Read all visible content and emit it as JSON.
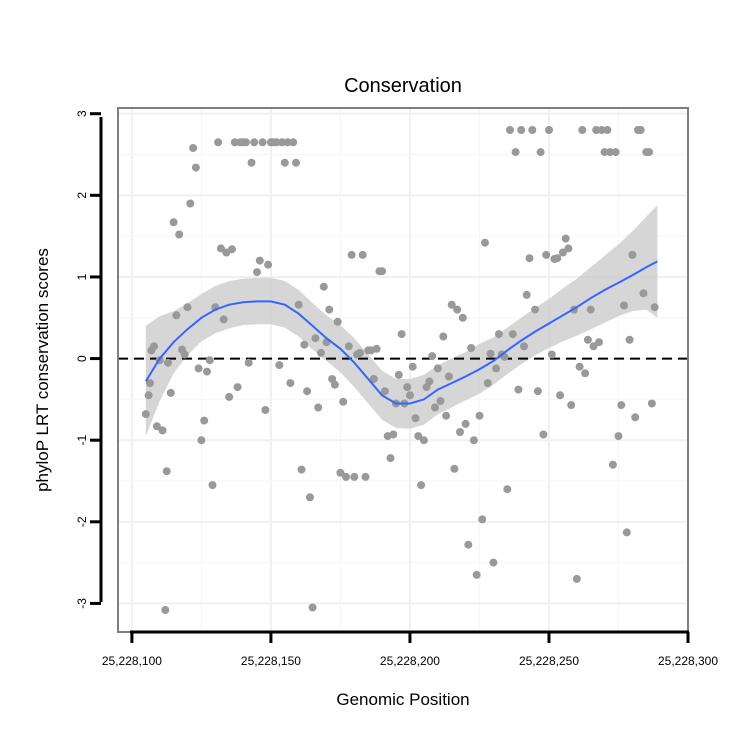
{
  "chart_data": {
    "type": "scatter",
    "title": "Conservation",
    "xlabel": "Genomic Position",
    "ylabel": "phyloP LRT conservation scores",
    "xlim": [
      25228095,
      25228300
    ],
    "ylim": [
      -3.35,
      3.07
    ],
    "x_ticks": [
      25228100,
      25228150,
      25228200,
      25228250,
      25228300
    ],
    "x_tick_labels": [
      "25,228,100",
      "25,228,150",
      "25,228,200",
      "25,228,250",
      "25,228,300"
    ],
    "y_ticks": [
      -3,
      -2,
      -1,
      0,
      1,
      2,
      3
    ],
    "y_tick_labels": [
      "-3",
      "-2",
      "-1",
      "0",
      "1",
      "2",
      "3"
    ],
    "reference_line": {
      "y": 0,
      "style": "dashed"
    },
    "grid": true,
    "colors": {
      "points": "#999999",
      "smooth": "#3366ff",
      "ribbon": "#cccccc",
      "reference": "#000000",
      "frame": "#7f7f7f"
    },
    "series": [
      {
        "name": "scores",
        "type": "scatter",
        "points": [
          [
            25228105,
            -0.68
          ],
          [
            25228106,
            -0.45
          ],
          [
            25228106.5,
            -0.3
          ],
          [
            25228107,
            0.1
          ],
          [
            25228108,
            0.15
          ],
          [
            25228109,
            -0.83
          ],
          [
            25228110,
            -0.02
          ],
          [
            25228111,
            -0.88
          ],
          [
            25228112,
            -3.08
          ],
          [
            25228112.5,
            -1.38
          ],
          [
            25228113,
            -0.05
          ],
          [
            25228114,
            -0.42
          ],
          [
            25228115,
            1.67
          ],
          [
            25228116,
            0.53
          ],
          [
            25228117,
            1.52
          ],
          [
            25228118,
            0.11
          ],
          [
            25228119,
            0.05
          ],
          [
            25228120,
            0.63
          ],
          [
            25228121,
            1.9
          ],
          [
            25228122,
            2.58
          ],
          [
            25228123,
            2.34
          ],
          [
            25228124,
            -0.12
          ],
          [
            25228125,
            -1.0
          ],
          [
            25228126,
            -0.76
          ],
          [
            25228127,
            -0.16
          ],
          [
            25228128,
            -0.02
          ],
          [
            25228129,
            -1.55
          ],
          [
            25228130,
            0.63
          ],
          [
            25228131,
            2.65
          ],
          [
            25228132,
            1.35
          ],
          [
            25228133,
            0.48
          ],
          [
            25228134,
            1.3
          ],
          [
            25228135,
            -0.47
          ],
          [
            25228136,
            1.34
          ],
          [
            25228137,
            2.65
          ],
          [
            25228138,
            -0.35
          ],
          [
            25228139,
            2.65
          ],
          [
            25228140,
            2.65
          ],
          [
            25228141,
            2.65
          ],
          [
            25228142,
            -0.05
          ],
          [
            25228143,
            2.4
          ],
          [
            25228144,
            2.65
          ],
          [
            25228145,
            1.06
          ],
          [
            25228146,
            1.2
          ],
          [
            25228147,
            2.65
          ],
          [
            25228148,
            -0.63
          ],
          [
            25228149,
            1.15
          ],
          [
            25228150,
            2.65
          ],
          [
            25228151,
            2.65
          ],
          [
            25228152,
            2.65
          ],
          [
            25228153,
            -0.08
          ],
          [
            25228154,
            2.65
          ],
          [
            25228155,
            2.4
          ],
          [
            25228156,
            2.65
          ],
          [
            25228157,
            -0.3
          ],
          [
            25228158,
            2.65
          ],
          [
            25228159,
            2.4
          ],
          [
            25228160,
            0.66
          ],
          [
            25228161,
            -1.36
          ],
          [
            25228162,
            0.17
          ],
          [
            25228163,
            -0.4
          ],
          [
            25228164,
            -1.7
          ],
          [
            25228165,
            -3.05
          ],
          [
            25228166,
            0.25
          ],
          [
            25228167,
            -0.6
          ],
          [
            25228168,
            0.07
          ],
          [
            25228169,
            0.88
          ],
          [
            25228170,
            0.2
          ],
          [
            25228171,
            0.6
          ],
          [
            25228172,
            -0.25
          ],
          [
            25228173,
            -0.32
          ],
          [
            25228174,
            0.45
          ],
          [
            25228175,
            -1.4
          ],
          [
            25228176,
            -0.53
          ],
          [
            25228177,
            -1.45
          ],
          [
            25228178,
            0.15
          ],
          [
            25228179,
            1.27
          ],
          [
            25228180,
            -1.45
          ],
          [
            25228181,
            0.05
          ],
          [
            25228182,
            0.07
          ],
          [
            25228183,
            1.27
          ],
          [
            25228184,
            -1.45
          ],
          [
            25228185,
            0.1
          ],
          [
            25228186,
            0.1
          ],
          [
            25228187,
            -0.25
          ],
          [
            25228188,
            0.12
          ],
          [
            25228189,
            1.07
          ],
          [
            25228190,
            1.07
          ],
          [
            25228191,
            -0.4
          ],
          [
            25228192,
            -0.95
          ],
          [
            25228193,
            -1.22
          ],
          [
            25228194,
            -0.93
          ],
          [
            25228195,
            -0.55
          ],
          [
            25228196,
            -0.2
          ],
          [
            25228197,
            0.3
          ],
          [
            25228198,
            -0.55
          ],
          [
            25228199,
            -0.35
          ],
          [
            25228200,
            -0.45
          ],
          [
            25228201,
            -0.1
          ],
          [
            25228202,
            -0.73
          ],
          [
            25228203,
            -0.95
          ],
          [
            25228204,
            -1.55
          ],
          [
            25228205,
            -1.0
          ],
          [
            25228206,
            -0.35
          ],
          [
            25228207,
            -0.28
          ],
          [
            25228208,
            0.03
          ],
          [
            25228209,
            -0.6
          ],
          [
            25228210,
            -0.12
          ],
          [
            25228211,
            -0.52
          ],
          [
            25228212,
            0.27
          ],
          [
            25228213,
            -0.7
          ],
          [
            25228214,
            -0.22
          ],
          [
            25228215,
            0.66
          ],
          [
            25228216,
            -1.35
          ],
          [
            25228217,
            0.6
          ],
          [
            25228218,
            -0.9
          ],
          [
            25228219,
            0.5
          ],
          [
            25228220,
            -0.8
          ],
          [
            25228221,
            -2.28
          ],
          [
            25228222,
            0.13
          ],
          [
            25228223,
            -1.0
          ],
          [
            25228224,
            -2.65
          ],
          [
            25228225,
            -0.7
          ],
          [
            25228226,
            -1.97
          ],
          [
            25228227,
            1.42
          ],
          [
            25228228,
            -0.3
          ],
          [
            25228229,
            0.06
          ],
          [
            25228230,
            -2.5
          ],
          [
            25228231,
            -0.12
          ],
          [
            25228232,
            0.3
          ],
          [
            25228233,
            0.05
          ],
          [
            25228234,
            0.02
          ],
          [
            25228235,
            -1.6
          ],
          [
            25228236,
            2.8
          ],
          [
            25228237,
            0.3
          ],
          [
            25228238,
            2.53
          ],
          [
            25228239,
            -0.38
          ],
          [
            25228240,
            2.8
          ],
          [
            25228241,
            0.15
          ],
          [
            25228242,
            0.78
          ],
          [
            25228243,
            1.23
          ],
          [
            25228244,
            2.8
          ],
          [
            25228245,
            0.6
          ],
          [
            25228246,
            -0.4
          ],
          [
            25228247,
            2.53
          ],
          [
            25228248,
            -0.93
          ],
          [
            25228249,
            1.27
          ],
          [
            25228250,
            2.8
          ],
          [
            25228251,
            0.05
          ],
          [
            25228252,
            1.22
          ],
          [
            25228253,
            1.23
          ],
          [
            25228254,
            -0.45
          ],
          [
            25228255,
            1.3
          ],
          [
            25228256,
            1.47
          ],
          [
            25228257,
            1.35
          ],
          [
            25228258,
            -0.57
          ],
          [
            25228259,
            0.6
          ],
          [
            25228260,
            -2.7
          ],
          [
            25228261,
            -0.1
          ],
          [
            25228262,
            2.8
          ],
          [
            25228263,
            -0.18
          ],
          [
            25228264,
            0.23
          ],
          [
            25228265,
            0.6
          ],
          [
            25228266,
            0.15
          ],
          [
            25228267,
            2.8
          ],
          [
            25228268,
            0.2
          ],
          [
            25228269,
            2.8
          ],
          [
            25228270,
            2.53
          ],
          [
            25228271,
            2.8
          ],
          [
            25228272,
            2.53
          ],
          [
            25228273,
            -1.3
          ],
          [
            25228274,
            2.53
          ],
          [
            25228275,
            -0.95
          ],
          [
            25228276,
            -0.57
          ],
          [
            25228277,
            0.65
          ],
          [
            25228278,
            -2.13
          ],
          [
            25228279,
            0.23
          ],
          [
            25228280,
            1.27
          ],
          [
            25228281,
            -0.72
          ],
          [
            25228282,
            2.8
          ],
          [
            25228283,
            2.8
          ],
          [
            25228284,
            0.8
          ],
          [
            25228285,
            2.53
          ],
          [
            25228286,
            2.53
          ],
          [
            25228287,
            -0.55
          ],
          [
            25228288,
            0.63
          ]
        ]
      },
      {
        "name": "loess fit",
        "type": "line",
        "x": [
          25228105,
          25228110,
          25228115,
          25228120,
          25228125,
          25228130,
          25228135,
          25228140,
          25228145,
          25228150,
          25228155,
          25228160,
          25228165,
          25228170,
          25228175,
          25228180,
          25228185,
          25228190,
          25228195,
          25228200,
          25228205,
          25228210,
          25228215,
          25228220,
          25228225,
          25228230,
          25228235,
          25228240,
          25228245,
          25228250,
          25228255,
          25228260,
          25228265,
          25228270,
          25228275,
          25228280,
          25228285,
          25228289
        ],
        "y": [
          -0.28,
          0.0,
          0.2,
          0.36,
          0.5,
          0.6,
          0.66,
          0.69,
          0.7,
          0.7,
          0.66,
          0.55,
          0.4,
          0.25,
          0.12,
          -0.05,
          -0.25,
          -0.45,
          -0.55,
          -0.55,
          -0.5,
          -0.38,
          -0.3,
          -0.22,
          -0.13,
          -0.03,
          0.1,
          0.22,
          0.33,
          0.43,
          0.53,
          0.63,
          0.74,
          0.84,
          0.93,
          1.02,
          1.12,
          1.19
        ],
        "ci_lower": [
          -0.95,
          -0.52,
          -0.18,
          0.04,
          0.21,
          0.31,
          0.37,
          0.41,
          0.42,
          0.42,
          0.38,
          0.27,
          0.11,
          -0.03,
          -0.17,
          -0.35,
          -0.55,
          -0.75,
          -0.85,
          -0.86,
          -0.81,
          -0.68,
          -0.6,
          -0.51,
          -0.43,
          -0.32,
          -0.19,
          -0.07,
          0.04,
          0.13,
          0.21,
          0.28,
          0.36,
          0.44,
          0.52,
          0.58,
          0.6,
          0.5
        ],
        "ci_upper": [
          0.4,
          0.52,
          0.58,
          0.68,
          0.79,
          0.89,
          0.95,
          0.98,
          0.99,
          0.99,
          0.95,
          0.84,
          0.68,
          0.53,
          0.41,
          0.25,
          0.05,
          -0.15,
          -0.25,
          -0.25,
          -0.2,
          -0.08,
          0.0,
          0.08,
          0.18,
          0.26,
          0.38,
          0.5,
          0.62,
          0.73,
          0.86,
          0.98,
          1.12,
          1.26,
          1.4,
          1.56,
          1.74,
          1.88
        ]
      }
    ]
  }
}
